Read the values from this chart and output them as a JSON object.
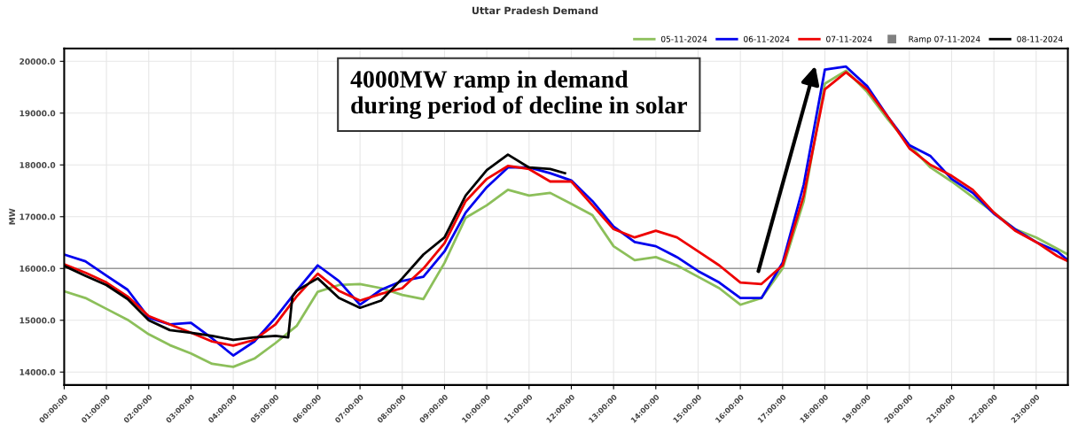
{
  "chart_data": {
    "type": "line",
    "title": "Uttar Pradesh Demand",
    "ylabel": "MW",
    "x": [
      0,
      0.5,
      1,
      1.5,
      2,
      2.5,
      3,
      3.5,
      4,
      4.5,
      5,
      5.5,
      6,
      6.5,
      7,
      7.5,
      8,
      8.5,
      9,
      9.5,
      10,
      10.5,
      11,
      11.5,
      12,
      12.5,
      13,
      13.5,
      14,
      14.5,
      15,
      15.5,
      16,
      16.5,
      17,
      17.5,
      18,
      18.5,
      19,
      19.5,
      20,
      20.5,
      21,
      21.5,
      22,
      22.5,
      23,
      23.5,
      23.75
    ],
    "series": [
      {
        "name": "05-11-2024",
        "color": "#8cbf5a",
        "values": [
          15560,
          15430,
          15220,
          15010,
          14730,
          14520,
          14360,
          14160,
          14100,
          14260,
          14560,
          14890,
          15550,
          15680,
          15700,
          15620,
          15490,
          15410,
          16110,
          16980,
          17220,
          17520,
          17410,
          17460,
          17250,
          17030,
          16430,
          16160,
          16220,
          16060,
          15840,
          15620,
          15300,
          15430,
          16000,
          17300,
          19570,
          19820,
          19410,
          18870,
          18380,
          17950,
          17680,
          17380,
          17080,
          16760,
          16600,
          16380,
          16270
        ]
      },
      {
        "name": "06-11-2024",
        "color": "#0000ee",
        "values": [
          16270,
          16140,
          15860,
          15590,
          15050,
          14920,
          14950,
          14650,
          14320,
          14590,
          15050,
          15570,
          16060,
          15760,
          15300,
          15590,
          15760,
          15840,
          16330,
          17080,
          17570,
          17950,
          17950,
          17840,
          17700,
          17300,
          16810,
          16510,
          16430,
          16220,
          15950,
          15730,
          15430,
          15430,
          16110,
          17620,
          19840,
          19900,
          19520,
          18920,
          18380,
          18170,
          17730,
          17460,
          17060,
          16760,
          16510,
          16330,
          16160
        ]
      },
      {
        "name": "07-11-2024",
        "color": "#ee0000",
        "values": [
          16080,
          15920,
          15730,
          15460,
          15080,
          14920,
          14760,
          14590,
          14510,
          14620,
          14920,
          15460,
          15900,
          15570,
          15380,
          15510,
          15620,
          16000,
          16490,
          17300,
          17730,
          17980,
          17920,
          17680,
          17680,
          17220,
          16760,
          16600,
          16730,
          16600,
          16330,
          16060,
          15730,
          15700,
          16060,
          17410,
          19460,
          19790,
          19460,
          18920,
          18320,
          18000,
          17790,
          17520,
          17080,
          16730,
          16510,
          16240,
          16140
        ]
      },
      {
        "name": "Ramp 07-11-2024",
        "type": "scatter",
        "marker": "square",
        "color": "#808080",
        "values": [
          null,
          null,
          null,
          null,
          null,
          null,
          null,
          null,
          null,
          null,
          null,
          null,
          null,
          null,
          null,
          null,
          null,
          null,
          null,
          null,
          null,
          null,
          null,
          null,
          null,
          null,
          null,
          null,
          null,
          null,
          null,
          null,
          null,
          null,
          null,
          null,
          null,
          null,
          null,
          null,
          null,
          null,
          null,
          null,
          null,
          null,
          null,
          null,
          null
        ]
      },
      {
        "name": "08-11-2024",
        "color": "#000000",
        "x": [
          0,
          0.5,
          1,
          1.5,
          2,
          2.5,
          3,
          3.5,
          4,
          4.5,
          5,
          5.3,
          5.4,
          5.5,
          6,
          6.5,
          7,
          7.5,
          8,
          8.5,
          9,
          9.5,
          10,
          10.5,
          11,
          11.5,
          11.85
        ],
        "values": [
          16050,
          15860,
          15680,
          15410,
          15000,
          14810,
          14760,
          14700,
          14620,
          14670,
          14700,
          14670,
          15460,
          15570,
          15810,
          15430,
          15240,
          15380,
          15810,
          16270,
          16600,
          17410,
          17900,
          18200,
          17950,
          17920,
          17840
        ]
      }
    ],
    "xlim": [
      0,
      23.75
    ],
    "xticks": [
      {
        "value": 0,
        "label": "00:00:00"
      },
      {
        "value": 1,
        "label": "01:00:00"
      },
      {
        "value": 2,
        "label": "02:00:00"
      },
      {
        "value": 3,
        "label": "03:00:00"
      },
      {
        "value": 4,
        "label": "04:00:00"
      },
      {
        "value": 5,
        "label": "05:00:00"
      },
      {
        "value": 6,
        "label": "06:00:00"
      },
      {
        "value": 7,
        "label": "07:00:00"
      },
      {
        "value": 8,
        "label": "08:00:00"
      },
      {
        "value": 9,
        "label": "09:00:00"
      },
      {
        "value": 10,
        "label": "10:00:00"
      },
      {
        "value": 11,
        "label": "11:00:00"
      },
      {
        "value": 12,
        "label": "12:00:00"
      },
      {
        "value": 13,
        "label": "13:00:00"
      },
      {
        "value": 14,
        "label": "14:00:00"
      },
      {
        "value": 15,
        "label": "15:00:00"
      },
      {
        "value": 16,
        "label": "16:00:00"
      },
      {
        "value": 17,
        "label": "17:00:00"
      },
      {
        "value": 18,
        "label": "18:00:00"
      },
      {
        "value": 19,
        "label": "19:00:00"
      },
      {
        "value": 20,
        "label": "20:00:00"
      },
      {
        "value": 21,
        "label": "21:00:00"
      },
      {
        "value": 22,
        "label": "22:00:00"
      },
      {
        "value": 23,
        "label": "23:00:00"
      }
    ],
    "ylim": [
      13750,
      20250
    ],
    "yticks": [
      {
        "value": 14000,
        "label": "14000.0"
      },
      {
        "value": 15000,
        "label": "15000.0"
      },
      {
        "value": 16000,
        "label": "16000.0"
      },
      {
        "value": 17000,
        "label": "17000.0"
      },
      {
        "value": 18000,
        "label": "18000.0"
      },
      {
        "value": 19000,
        "label": "19000.0"
      },
      {
        "value": 20000,
        "label": "20000.0"
      }
    ],
    "ref_lines": [
      {
        "axis": "y",
        "value": 16000,
        "color": "#999999"
      }
    ],
    "annotations": [
      "4000MW ramp in demand\nduring period of decline in solar"
    ],
    "grid": true,
    "legend": "top right",
    "marker": "none",
    "line_style": "solid"
  }
}
